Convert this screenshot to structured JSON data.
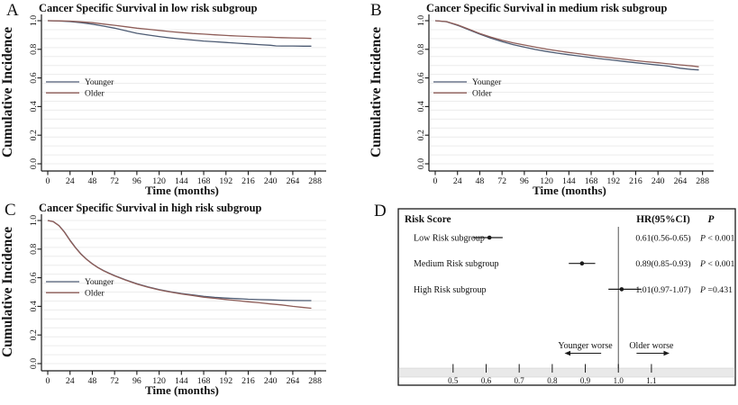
{
  "figure": {
    "panels": [
      {
        "letter": "A"
      },
      {
        "letter": "B"
      },
      {
        "letter": "C"
      },
      {
        "letter": "D"
      }
    ]
  },
  "colors": {
    "younger": "#4d5b73",
    "older": "#8e5d58",
    "grid": "#ececec",
    "axis": "#1a1a1a",
    "text": "#111111",
    "band": "#e9e9e9",
    "refline": "#555555"
  },
  "chart_data": [
    {
      "type": "line",
      "panel": "A",
      "title": "Cancer Specific Survival in low risk subgroup",
      "xlabel": "Time (months)",
      "ylabel": "Cumulative Incidence",
      "xlim": [
        0,
        300
      ],
      "ylim": [
        0,
        1
      ],
      "xticks": [
        0,
        24,
        48,
        72,
        96,
        120,
        144,
        168,
        192,
        216,
        240,
        264,
        288
      ],
      "yticks": [
        "0.0",
        "0.2",
        "0.4",
        "0.6",
        "0.8",
        "1.0"
      ],
      "grid": "horizontal-light",
      "legend_position": "left-middle",
      "series": [
        {
          "name": "Younger",
          "color": "#4d5b73",
          "x": [
            0,
            12,
            24,
            36,
            48,
            60,
            72,
            84,
            96,
            108,
            120,
            132,
            144,
            156,
            168,
            180,
            192,
            204,
            216,
            228,
            240,
            246,
            252,
            264,
            276,
            284
          ],
          "y": [
            1.0,
            0.998,
            0.994,
            0.986,
            0.976,
            0.962,
            0.948,
            0.93,
            0.912,
            0.9,
            0.889,
            0.88,
            0.872,
            0.865,
            0.858,
            0.853,
            0.848,
            0.843,
            0.838,
            0.833,
            0.828,
            0.824,
            0.823,
            0.823,
            0.822,
            0.822
          ]
        },
        {
          "name": "Older",
          "color": "#8e5d58",
          "x": [
            0,
            12,
            24,
            36,
            48,
            60,
            72,
            84,
            96,
            108,
            120,
            132,
            144,
            156,
            168,
            180,
            192,
            204,
            216,
            228,
            240,
            246,
            252,
            264,
            276,
            284
          ],
          "y": [
            1.0,
            0.999,
            0.997,
            0.992,
            0.986,
            0.977,
            0.968,
            0.958,
            0.948,
            0.94,
            0.932,
            0.924,
            0.917,
            0.911,
            0.906,
            0.901,
            0.897,
            0.893,
            0.89,
            0.887,
            0.885,
            0.883,
            0.882,
            0.88,
            0.878,
            0.876
          ]
        }
      ]
    },
    {
      "type": "line",
      "panel": "B",
      "title": "Cancer Specific Survival in medium risk subgroup",
      "xlabel": "Time (months)",
      "ylabel": "Cumulative Incidence",
      "xlim": [
        0,
        300
      ],
      "ylim": [
        0,
        1
      ],
      "xticks": [
        0,
        24,
        48,
        72,
        96,
        120,
        144,
        168,
        192,
        216,
        240,
        264,
        288
      ],
      "yticks": [
        "0.0",
        "0.2",
        "0.4",
        "0.6",
        "0.8",
        "1.0"
      ],
      "grid": "horizontal-light",
      "legend_position": "left-middle",
      "series": [
        {
          "name": "Younger",
          "color": "#4d5b73",
          "x": [
            0,
            12,
            24,
            36,
            48,
            60,
            72,
            84,
            96,
            108,
            120,
            132,
            144,
            156,
            168,
            180,
            192,
            204,
            216,
            228,
            240,
            246,
            252,
            264,
            276,
            284
          ],
          "y": [
            1.0,
            0.993,
            0.968,
            0.937,
            0.906,
            0.878,
            0.854,
            0.833,
            0.815,
            0.799,
            0.785,
            0.773,
            0.762,
            0.752,
            0.742,
            0.733,
            0.724,
            0.715,
            0.706,
            0.698,
            0.69,
            0.686,
            0.682,
            0.668,
            0.659,
            0.656
          ]
        },
        {
          "name": "Older",
          "color": "#8e5d58",
          "x": [
            0,
            12,
            24,
            36,
            48,
            60,
            72,
            84,
            96,
            108,
            120,
            132,
            144,
            156,
            168,
            180,
            192,
            204,
            216,
            228,
            240,
            246,
            252,
            264,
            276,
            284
          ],
          "y": [
            1.0,
            0.994,
            0.971,
            0.941,
            0.911,
            0.885,
            0.863,
            0.845,
            0.83,
            0.815,
            0.801,
            0.789,
            0.778,
            0.768,
            0.758,
            0.748,
            0.739,
            0.73,
            0.721,
            0.713,
            0.706,
            0.702,
            0.698,
            0.691,
            0.684,
            0.678
          ]
        }
      ]
    },
    {
      "type": "line",
      "panel": "C",
      "title": "Cancer Specific Survival in high risk subgroup",
      "xlabel": "Time (months)",
      "ylabel": "Cumulative Incidence",
      "xlim": [
        0,
        300
      ],
      "ylim": [
        0,
        1
      ],
      "xticks": [
        0,
        24,
        48,
        72,
        96,
        120,
        144,
        168,
        192,
        216,
        240,
        264,
        288
      ],
      "yticks": [
        "0.0",
        "0.2",
        "0.4",
        "0.6",
        "0.8",
        "1.0"
      ],
      "grid": "horizontal-light",
      "legend_position": "left-middle",
      "series": [
        {
          "name": "Younger",
          "color": "#4d5b73",
          "x": [
            0,
            6,
            12,
            18,
            24,
            30,
            36,
            42,
            48,
            54,
            60,
            66,
            72,
            84,
            96,
            108,
            120,
            132,
            144,
            156,
            168,
            180,
            192,
            204,
            216,
            228,
            240,
            252,
            264,
            276,
            284
          ],
          "y": [
            1.0,
            0.992,
            0.965,
            0.92,
            0.862,
            0.81,
            0.765,
            0.728,
            0.698,
            0.672,
            0.65,
            0.632,
            0.615,
            0.585,
            0.558,
            0.536,
            0.517,
            0.502,
            0.49,
            0.48,
            0.47,
            0.463,
            0.458,
            0.454,
            0.45,
            0.447,
            0.445,
            0.443,
            0.441,
            0.44,
            0.44
          ]
        },
        {
          "name": "Older",
          "color": "#8e5d58",
          "x": [
            0,
            6,
            12,
            18,
            24,
            30,
            36,
            42,
            48,
            54,
            60,
            66,
            72,
            84,
            96,
            108,
            120,
            132,
            144,
            156,
            168,
            180,
            192,
            204,
            216,
            228,
            240,
            252,
            264,
            276,
            284
          ],
          "y": [
            1.0,
            0.992,
            0.964,
            0.918,
            0.86,
            0.808,
            0.763,
            0.727,
            0.697,
            0.671,
            0.649,
            0.63,
            0.613,
            0.583,
            0.556,
            0.534,
            0.515,
            0.5,
            0.487,
            0.476,
            0.464,
            0.456,
            0.448,
            0.44,
            0.432,
            0.425,
            0.417,
            0.41,
            0.4,
            0.392,
            0.387
          ]
        }
      ]
    },
    {
      "type": "forest",
      "panel": "D",
      "header": {
        "label": "Risk Score",
        "hr": "HR(95%CI)",
        "p": "P"
      },
      "rows": [
        {
          "label": "Low Risk subgroup",
          "hr": 0.61,
          "ci_low": 0.56,
          "ci_high": 0.65,
          "hr_text": "0.61(0.56-0.65)",
          "p_text": "P < 0.001"
        },
        {
          "label": "Medium Risk subgroup",
          "hr": 0.89,
          "ci_low": 0.85,
          "ci_high": 0.93,
          "hr_text": "0.89(0.85-0.93)",
          "p_text": "P < 0.001"
        },
        {
          "label": "High  Risk subgroup",
          "hr": 1.01,
          "ci_low": 0.97,
          "ci_high": 1.07,
          "hr_text": "1.01(0.97-1.07)",
          "p_text": "P =0.431"
        }
      ],
      "refline": 1.0,
      "xlim": [
        0.337,
        1.351
      ],
      "xticks": [
        0.5,
        0.6,
        0.7,
        0.8,
        0.9,
        1.0,
        1.1
      ],
      "annotations": [
        {
          "text": "Younger worse",
          "arrow_dir": "left",
          "text_center": 0.9,
          "arrow_from": 0.84,
          "arrow_to": 0.948
        },
        {
          "text": "Older  worse",
          "arrow_dir": "right",
          "text_center": 1.1,
          "arrow_from": 1.055,
          "arrow_to": 1.152
        }
      ]
    }
  ]
}
